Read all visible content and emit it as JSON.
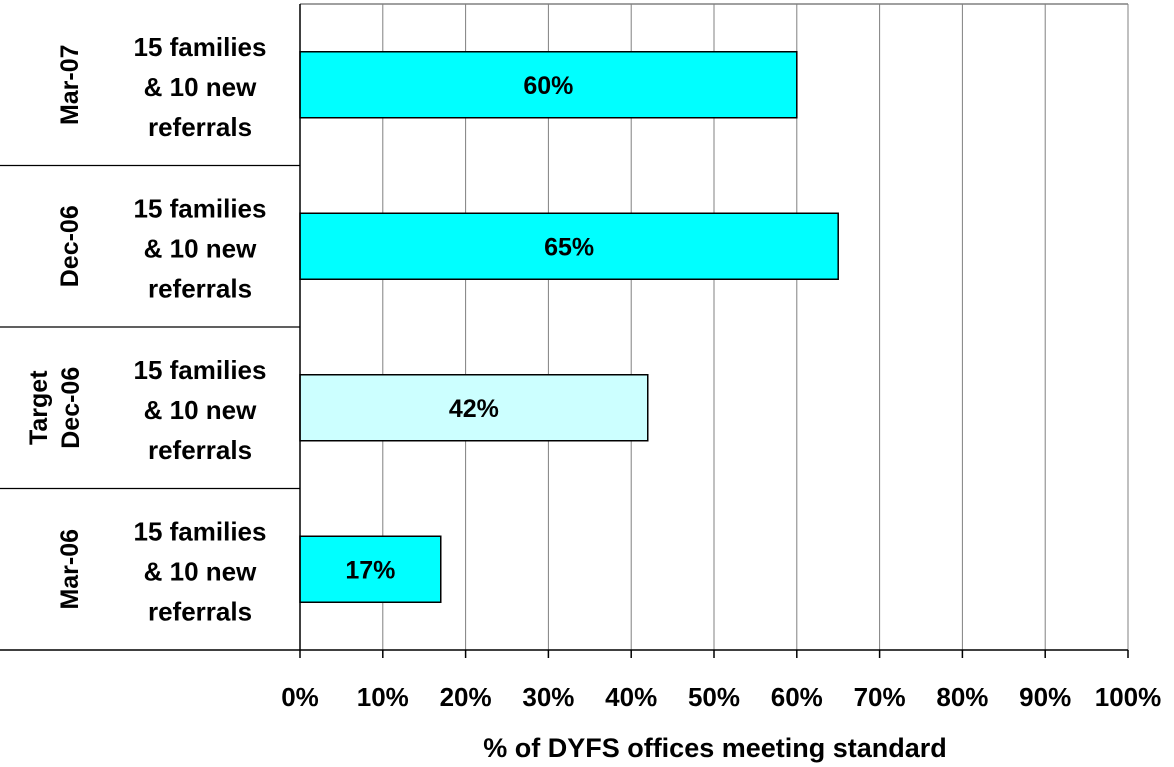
{
  "chart_data": {
    "type": "bar",
    "orientation": "horizontal",
    "categories": [
      {
        "period": "Mar-07",
        "period_line2": "",
        "description": [
          "15 families",
          "& 10 new",
          "referrals"
        ],
        "value": 60,
        "value_label": "60%",
        "style": "actual"
      },
      {
        "period": "Dec-06",
        "period_line2": "",
        "description": [
          "15 families",
          "& 10 new",
          "referrals"
        ],
        "value": 65,
        "value_label": "65%",
        "style": "actual"
      },
      {
        "period": "Target",
        "period_line2": "Dec-06",
        "description": [
          "15 families",
          "& 10 new",
          "referrals"
        ],
        "value": 42,
        "value_label": "42%",
        "style": "target"
      },
      {
        "period": "Mar-06",
        "period_line2": "",
        "description": [
          "15 families",
          "& 10 new",
          "referrals"
        ],
        "value": 17,
        "value_label": "17%",
        "style": "actual"
      }
    ],
    "xlabel": "% of DYFS offices meeting standard",
    "xlim": [
      0,
      100
    ],
    "xticks": [
      "0%",
      "10%",
      "20%",
      "30%",
      "40%",
      "50%",
      "60%",
      "70%",
      "80%",
      "90%",
      "100%"
    ],
    "grid": true,
    "colors": {
      "actual": "#00FFFF",
      "target": "#CCFFFF",
      "edge": "#000000",
      "grid": "#808080"
    }
  }
}
